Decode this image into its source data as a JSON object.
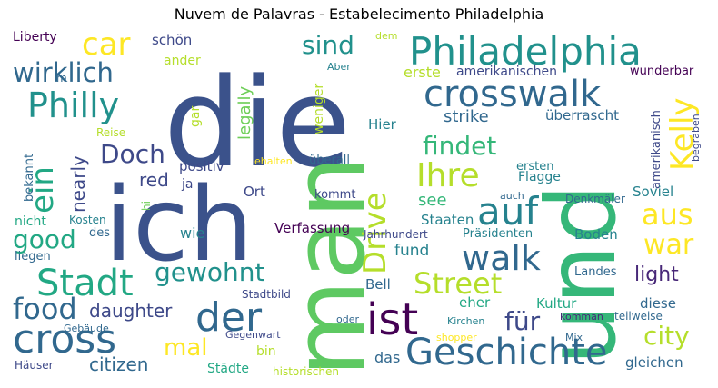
{
  "title": "Nuvem de Palavras - Estabelecimento Philadelphia",
  "words": [
    {
      "text": "die",
      "color": "#3b528b"
    },
    {
      "text": "ich",
      "color": "#3b528b"
    },
    {
      "text": "man",
      "color": "#5ec962"
    },
    {
      "text": "und",
      "color": "#35b779"
    },
    {
      "text": "Philadelphia",
      "color": "#21918c"
    },
    {
      "text": "crosswalk",
      "color": "#31688e"
    },
    {
      "text": "Philly",
      "color": "#21918c"
    },
    {
      "text": "wirklich",
      "color": "#31688e"
    },
    {
      "text": "car",
      "color": "#fde725"
    },
    {
      "text": "sind",
      "color": "#21918c"
    },
    {
      "text": "Liberty",
      "color": "#440154"
    },
    {
      "text": "schön",
      "color": "#3e4989"
    },
    {
      "text": "dem",
      "color": "#b5de2b"
    },
    {
      "text": "auf",
      "color": "#26828e"
    },
    {
      "text": "Ihre",
      "color": "#b5de2b"
    },
    {
      "text": "findet",
      "color": "#35b779"
    },
    {
      "text": "Kelly",
      "color": "#fde725"
    },
    {
      "text": "Doch",
      "color": "#3e4989"
    },
    {
      "text": "ein",
      "color": "#22a884"
    },
    {
      "text": "Drive",
      "color": "#b5de2b"
    },
    {
      "text": "walk",
      "color": "#31688e"
    },
    {
      "text": "aus",
      "color": "#fde725"
    },
    {
      "text": "war",
      "color": "#fde725"
    },
    {
      "text": "Stadt",
      "color": "#22a884"
    },
    {
      "text": "good",
      "color": "#22a884"
    },
    {
      "text": "gewohnt",
      "color": "#21918c"
    },
    {
      "text": "Street",
      "color": "#b5de2b"
    },
    {
      "text": "der",
      "color": "#31688e"
    },
    {
      "text": "ist",
      "color": "#440154"
    },
    {
      "text": "food",
      "color": "#31688e"
    },
    {
      "text": "cross",
      "color": "#31688e"
    },
    {
      "text": "Geschichte",
      "color": "#31688e"
    },
    {
      "text": "city",
      "color": "#b5de2b"
    },
    {
      "text": "mal",
      "color": "#fde725"
    },
    {
      "text": "für",
      "color": "#3e4989"
    },
    {
      "text": "light",
      "color": "#482878"
    },
    {
      "text": "citizen",
      "color": "#31688e"
    },
    {
      "text": "daughter",
      "color": "#3e4989"
    },
    {
      "text": "legally",
      "color": "#6ece58"
    },
    {
      "text": "strike",
      "color": "#31688e"
    },
    {
      "text": "erste",
      "color": "#b5de2b"
    },
    {
      "text": "amerikanischen",
      "color": "#3e4989"
    },
    {
      "text": "überrascht",
      "color": "#31688e"
    },
    {
      "text": "wunderbar",
      "color": "#440154"
    },
    {
      "text": "amerikanisch",
      "color": "#3e4989"
    },
    {
      "text": "begraben",
      "color": "#3e4989"
    },
    {
      "text": "red",
      "color": "#3e4989"
    },
    {
      "text": "ja",
      "color": "#3e4989"
    },
    {
      "text": "nearly",
      "color": "#3e4989"
    },
    {
      "text": "positiv",
      "color": "#3e4989"
    },
    {
      "text": "Ort",
      "color": "#3e4989"
    },
    {
      "text": "kommt",
      "color": "#3e4989"
    },
    {
      "text": "see",
      "color": "#35b779"
    },
    {
      "text": "Staaten",
      "color": "#26828e"
    },
    {
      "text": "fund",
      "color": "#26828e"
    },
    {
      "text": "Soviel",
      "color": "#26828e"
    },
    {
      "text": "Flagge",
      "color": "#26828e"
    },
    {
      "text": "ersten",
      "color": "#26828e"
    },
    {
      "text": "Boden",
      "color": "#26828e"
    },
    {
      "text": "Präsidenten",
      "color": "#26828e"
    },
    {
      "text": "Jahrhundert",
      "color": "#3e4989"
    },
    {
      "text": "Verfassung",
      "color": "#440154"
    },
    {
      "text": "wie",
      "color": "#26828e"
    },
    {
      "text": "Kosten",
      "color": "#26828e"
    },
    {
      "text": "des",
      "color": "#31688e"
    },
    {
      "text": "liegen",
      "color": "#31688e"
    },
    {
      "text": "nicht",
      "color": "#22a884"
    },
    {
      "text": "bekannt",
      "color": "#31688e"
    },
    {
      "text": "hi",
      "color": "#6ece58"
    },
    {
      "text": "Reise",
      "color": "#b5de2b"
    },
    {
      "text": "ander",
      "color": "#b5de2b"
    },
    {
      "text": "gar",
      "color": "#b5de2b"
    },
    {
      "text": "weniger",
      "color": "#b5de2b"
    },
    {
      "text": "Aber",
      "color": "#26828e"
    },
    {
      "text": "Hier",
      "color": "#26828e"
    },
    {
      "text": "ehalten",
      "color": "#fde725"
    },
    {
      "text": "überall",
      "color": "#31688e"
    },
    {
      "text": "Denkmäler",
      "color": "#31688e"
    },
    {
      "text": "auch",
      "color": "#31688e"
    },
    {
      "text": "Bell",
      "color": "#31688e"
    },
    {
      "text": "Landes",
      "color": "#31688e"
    },
    {
      "text": "eher",
      "color": "#22a884"
    },
    {
      "text": "Kultur",
      "color": "#22a884"
    },
    {
      "text": "diese",
      "color": "#31688e"
    },
    {
      "text": "teilweise",
      "color": "#31688e"
    },
    {
      "text": "komman",
      "color": "#482878"
    },
    {
      "text": "Kirchen",
      "color": "#26828e"
    },
    {
      "text": "oder",
      "color": "#31688e"
    },
    {
      "text": "Stadtbild",
      "color": "#3e4989"
    },
    {
      "text": "Gebäude",
      "color": "#31688e"
    },
    {
      "text": "Gegenwart",
      "color": "#3e4989"
    },
    {
      "text": "bin",
      "color": "#b5de2b"
    },
    {
      "text": "Städte",
      "color": "#22a884"
    },
    {
      "text": "historischen",
      "color": "#b5de2b"
    },
    {
      "text": "das",
      "color": "#31688e"
    },
    {
      "text": "shopper",
      "color": "#fde725"
    },
    {
      "text": "Mix",
      "color": "#31688e"
    },
    {
      "text": "gleichen",
      "color": "#31688e"
    },
    {
      "text": "Häuser",
      "color": "#3e4989"
    },
    {
      "text": "m",
      "color": "#31688e"
    }
  ]
}
